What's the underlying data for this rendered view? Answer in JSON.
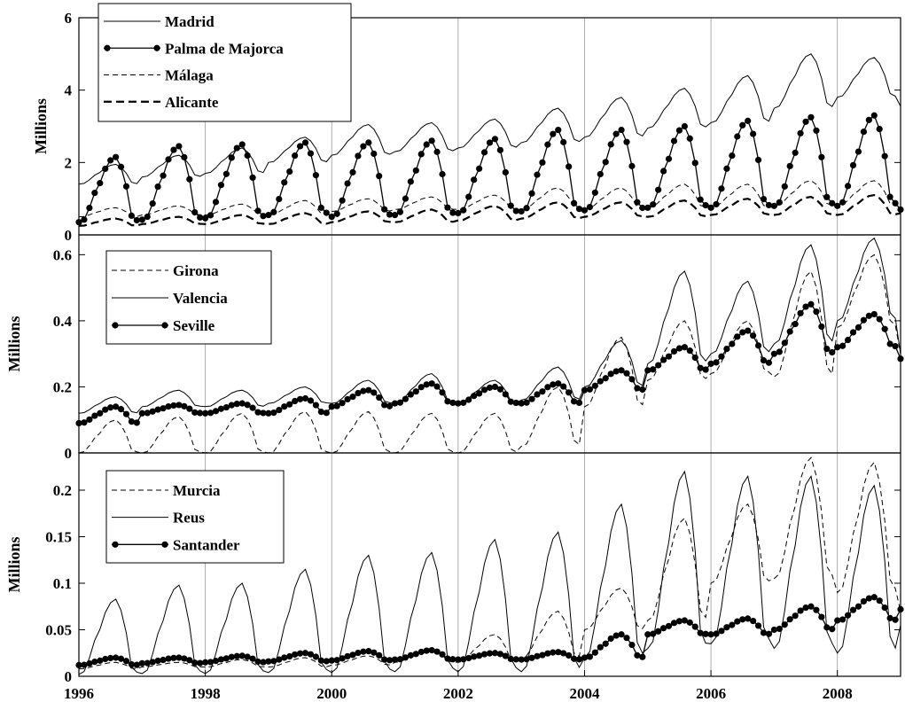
{
  "chart_data": [
    {
      "type": "line",
      "ylabel": "Millions",
      "ylim": [
        0,
        6
      ],
      "yticks": [
        "0",
        "2",
        "4",
        "6"
      ],
      "xlim": [
        1996,
        2009
      ],
      "xticks": [
        "1996",
        "1998",
        "2000",
        "2002",
        "2004",
        "2006",
        "2008"
      ],
      "grid": "vertical at even years",
      "legend_position": "top-left",
      "series": [
        {
          "name": "Madrid",
          "style": "solid",
          "annual_low": [
            1.4,
            1.6,
            1.7,
            2.0,
            2.2,
            2.3,
            2.4,
            2.55,
            2.7,
            2.95,
            3.1,
            3.5,
            3.8
          ],
          "annual_high": [
            1.95,
            2.2,
            2.4,
            2.7,
            3.05,
            3.1,
            3.2,
            3.5,
            3.8,
            4.05,
            4.4,
            5.0,
            4.9
          ],
          "end_value": 3.55
        },
        {
          "name": "Palma de Majorca",
          "style": "solid-marker",
          "annual_low": [
            0.35,
            0.42,
            0.46,
            0.55,
            0.5,
            0.55,
            0.6,
            0.65,
            0.68,
            0.75,
            0.75,
            0.8,
            0.8
          ],
          "annual_high": [
            2.15,
            2.45,
            2.5,
            2.55,
            2.55,
            2.6,
            2.65,
            2.9,
            2.9,
            3.0,
            3.15,
            3.25,
            3.3
          ],
          "end_value": 0.7
        },
        {
          "name": "Málaga",
          "style": "dashed-thin",
          "annual_low": [
            0.5,
            0.55,
            0.55,
            0.55,
            0.65,
            0.7,
            0.7,
            0.7,
            0.7,
            0.75,
            0.75,
            0.8,
            0.8
          ],
          "annual_high": [
            0.75,
            0.8,
            0.85,
            0.95,
            1.0,
            1.05,
            1.1,
            1.3,
            1.3,
            1.4,
            1.4,
            1.5,
            1.5
          ],
          "end_value": 0.8
        },
        {
          "name": "Alicante",
          "style": "dashed-thick",
          "annual_low": [
            0.25,
            0.3,
            0.3,
            0.3,
            0.35,
            0.35,
            0.4,
            0.45,
            0.5,
            0.5,
            0.55,
            0.55,
            0.55
          ],
          "annual_high": [
            0.45,
            0.5,
            0.55,
            0.6,
            0.65,
            0.7,
            0.8,
            0.9,
            0.9,
            0.95,
            1.0,
            1.05,
            1.1
          ],
          "end_value": 0.6
        }
      ]
    },
    {
      "type": "line",
      "ylabel": "Millions",
      "ylim": [
        0,
        0.66
      ],
      "yticks": [
        "0",
        "0.2",
        "0.4",
        "0.6"
      ],
      "xlim": [
        1996,
        2009
      ],
      "xticks": [
        "1996",
        "1998",
        "2000",
        "2002",
        "2004",
        "2006",
        "2008"
      ],
      "grid": "vertical at even years",
      "legend_position": "top-left",
      "series": [
        {
          "name": "Girona",
          "style": "dashed-thin",
          "annual_low": [
            0.0,
            0.0,
            0.0,
            0.0,
            0.0,
            0.0,
            0.0,
            0.02,
            0.14,
            0.22,
            0.24,
            0.23,
            0.38
          ],
          "annual_high": [
            0.1,
            0.11,
            0.12,
            0.125,
            0.125,
            0.12,
            0.12,
            0.2,
            0.35,
            0.4,
            0.4,
            0.55,
            0.6
          ],
          "end_value": 0.3
        },
        {
          "name": "Valencia",
          "style": "solid",
          "annual_low": [
            0.12,
            0.14,
            0.14,
            0.15,
            0.15,
            0.15,
            0.15,
            0.16,
            0.2,
            0.27,
            0.3,
            0.33,
            0.4
          ],
          "annual_high": [
            0.17,
            0.19,
            0.19,
            0.2,
            0.22,
            0.24,
            0.22,
            0.26,
            0.34,
            0.55,
            0.52,
            0.63,
            0.65
          ],
          "end_value": 0.3
        },
        {
          "name": "Seville",
          "style": "solid-marker",
          "annual_low": [
            0.09,
            0.12,
            0.12,
            0.12,
            0.14,
            0.15,
            0.15,
            0.15,
            0.19,
            0.25,
            0.27,
            0.3,
            0.32
          ],
          "annual_high": [
            0.14,
            0.145,
            0.15,
            0.165,
            0.19,
            0.21,
            0.2,
            0.21,
            0.25,
            0.32,
            0.37,
            0.45,
            0.42
          ],
          "end_value": 0.285
        }
      ]
    },
    {
      "type": "line",
      "ylabel": "Millions",
      "ylim": [
        0,
        0.24
      ],
      "yticks": [
        "0",
        "0.05",
        "0.1",
        "0.15",
        "0.2"
      ],
      "xlim": [
        1996,
        2009
      ],
      "xticks": [
        "1996",
        "1998",
        "2000",
        "2002",
        "2004",
        "2006",
        "2008"
      ],
      "grid": "vertical at even years",
      "legend_position": "top-left",
      "series": [
        {
          "name": "Murcia",
          "style": "dashed-thin",
          "annual_low": [
            0.008,
            0.01,
            0.01,
            0.01,
            0.012,
            0.015,
            0.015,
            0.02,
            0.05,
            0.06,
            0.1,
            0.105,
            0.09
          ],
          "annual_high": [
            0.015,
            0.015,
            0.018,
            0.02,
            0.022,
            0.03,
            0.045,
            0.07,
            0.095,
            0.17,
            0.185,
            0.235,
            0.23
          ],
          "end_value": 0.07
        },
        {
          "name": "Reus",
          "style": "solid",
          "annual_low": [
            0.002,
            0.003,
            0.003,
            0.004,
            0.004,
            0.005,
            0.005,
            0.005,
            0.02,
            0.03,
            0.035,
            0.03,
            0.025
          ],
          "annual_high": [
            0.083,
            0.098,
            0.1,
            0.115,
            0.13,
            0.133,
            0.147,
            0.155,
            0.185,
            0.22,
            0.215,
            0.215,
            0.205
          ],
          "end_value": 0.055
        },
        {
          "name": "Santander",
          "style": "solid-marker",
          "annual_low": [
            0.012,
            0.014,
            0.015,
            0.016,
            0.017,
            0.018,
            0.018,
            0.018,
            0.02,
            0.045,
            0.045,
            0.05,
            0.06
          ],
          "annual_high": [
            0.02,
            0.02,
            0.022,
            0.025,
            0.027,
            0.028,
            0.025,
            0.026,
            0.045,
            0.06,
            0.062,
            0.075,
            0.085
          ],
          "end_value": 0.072
        }
      ]
    }
  ]
}
